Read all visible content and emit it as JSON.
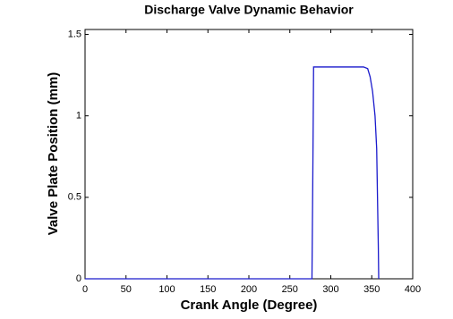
{
  "chart_data": {
    "type": "line",
    "title": "Discharge Valve Dynamic Behavior",
    "x_label": "Crank Angle (Degree)",
    "y_label": "Valve Plate Position (mm)",
    "x": [
      0,
      277,
      278,
      279,
      300,
      340,
      345,
      348,
      351,
      354,
      356,
      357,
      358,
      358.5
    ],
    "series": [
      {
        "color": "#1a1acc",
        "values": [
          0,
          0,
          0.6,
          1.3,
          1.3,
          1.3,
          1.29,
          1.24,
          1.15,
          1.0,
          0.8,
          0.5,
          0.2,
          0
        ]
      }
    ],
    "xlim": [
      0,
      400
    ],
    "xticks": [
      0,
      50,
      100,
      150,
      200,
      250,
      300,
      350,
      400
    ],
    "ylim": [
      0,
      1.53
    ],
    "yticks": [
      0,
      0.5,
      1,
      1.5
    ],
    "grid": false
  }
}
